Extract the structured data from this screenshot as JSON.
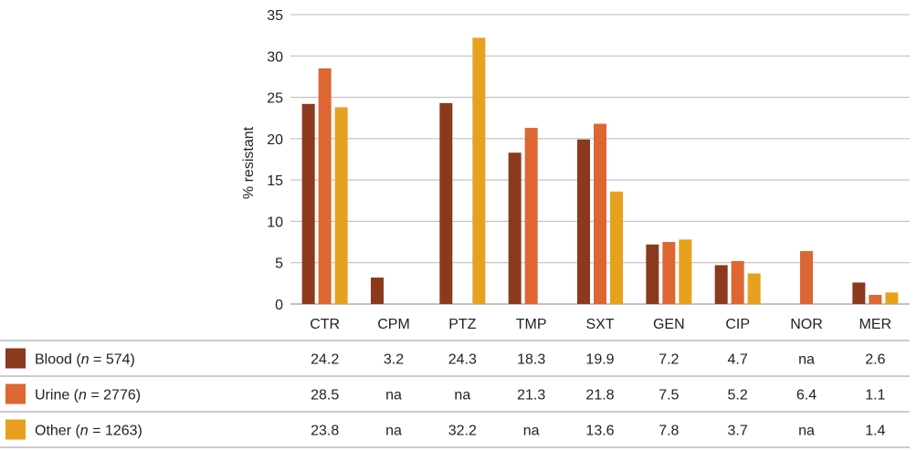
{
  "chart_data": {
    "type": "bar",
    "ylabel": "% resistant",
    "ylim": [
      0,
      35
    ],
    "yticks": [
      0,
      5,
      10,
      15,
      20,
      25,
      30,
      35
    ],
    "grid": true,
    "categories": [
      "CTR",
      "CPM",
      "PTZ",
      "TMP",
      "SXT",
      "GEN",
      "CIP",
      "NOR",
      "MER"
    ],
    "series": [
      {
        "name": "Blood",
        "legend": {
          "prefix": "Blood (",
          "n_symbol": "n",
          "suffix": " = 574)"
        },
        "color": "#8B3A1E",
        "values": [
          24.2,
          3.2,
          24.3,
          18.3,
          19.9,
          7.2,
          4.7,
          null,
          2.6
        ],
        "labels": [
          "24.2",
          "3.2",
          "24.3",
          "18.3",
          "19.9",
          "7.2",
          "4.7",
          "na",
          "2.6"
        ]
      },
      {
        "name": "Urine",
        "legend": {
          "prefix": "Urine (",
          "n_symbol": "n",
          "suffix": " = 2776)"
        },
        "color": "#DD6633",
        "values": [
          28.5,
          null,
          null,
          21.3,
          21.8,
          7.5,
          5.2,
          6.4,
          1.1
        ],
        "labels": [
          "28.5",
          "na",
          "na",
          "21.3",
          "21.8",
          "7.5",
          "5.2",
          "6.4",
          "1.1"
        ]
      },
      {
        "name": "Other",
        "legend": {
          "prefix": "Other (",
          "n_symbol": "n",
          "suffix": " = 1263)"
        },
        "color": "#E6A21E",
        "values": [
          23.8,
          null,
          32.2,
          null,
          13.6,
          7.8,
          3.7,
          null,
          1.4
        ],
        "labels": [
          "23.8",
          "na",
          "32.2",
          "na",
          "13.6",
          "7.8",
          "3.7",
          "na",
          "1.4"
        ]
      }
    ]
  }
}
